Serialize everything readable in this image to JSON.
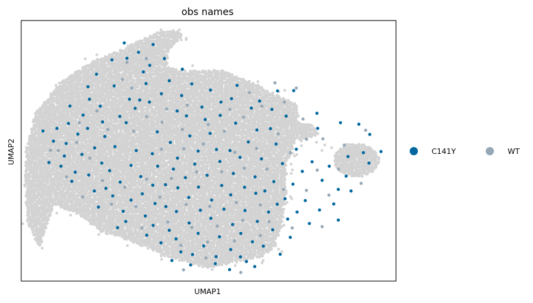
{
  "chart_data": {
    "type": "scatter",
    "title": "obs names",
    "xlabel": "UMAP1",
    "ylabel": "UMAP2",
    "xticks": [],
    "yticks": [],
    "grid": false,
    "legend_placement": "right",
    "xlim": [
      0,
      100
    ],
    "ylim": [
      0,
      100
    ],
    "background_color": "#d3d3d3",
    "series": [
      {
        "name": "C141Y",
        "color": "#00679f"
      },
      {
        "name": "WT",
        "color": "#94a8b8"
      }
    ],
    "highlight_points": {
      "C141Y": [
        [
          28.2,
          85.5
        ],
        [
          32.6,
          80.3
        ],
        [
          34.3,
          82.8
        ],
        [
          21.1,
          67.1
        ],
        [
          16.5,
          63.7
        ],
        [
          12.0,
          52.8
        ],
        [
          8.6,
          53.7
        ],
        [
          18.2,
          69.8
        ],
        [
          24.8,
          74.9
        ],
        [
          34.2,
          68.7
        ],
        [
          28.9,
          69.8
        ],
        [
          36.3,
          57.3
        ],
        [
          41.6,
          65.3
        ],
        [
          44.1,
          63.4
        ],
        [
          49.1,
          62.0
        ],
        [
          53.3,
          68.7
        ],
        [
          57.6,
          75.1
        ],
        [
          63.6,
          69.1
        ],
        [
          68.4,
          73.0
        ],
        [
          72.7,
          73.1
        ],
        [
          79.1,
          58.6
        ],
        [
          78.9,
          64.4
        ],
        [
          70.7,
          63.3
        ],
        [
          66.5,
          58.5
        ],
        [
          60.6,
          53.4
        ],
        [
          55.7,
          50.1
        ],
        [
          53.0,
          45.9
        ],
        [
          47.2,
          49.9
        ],
        [
          41.7,
          47.2
        ],
        [
          36.4,
          44.1
        ],
        [
          31.9,
          40.1
        ],
        [
          26.4,
          38.0
        ],
        [
          21.5,
          45.3
        ],
        [
          16.2,
          48.6
        ],
        [
          10.6,
          44.1
        ],
        [
          13.5,
          38.3
        ],
        [
          19.5,
          34.6
        ],
        [
          24.4,
          32.7
        ],
        [
          32.3,
          33.5
        ],
        [
          38.5,
          37.0
        ],
        [
          43.8,
          39.7
        ],
        [
          49.6,
          40.6
        ],
        [
          56.6,
          41.3
        ],
        [
          62.4,
          40.0
        ],
        [
          67.4,
          38.2
        ],
        [
          72.5,
          37.2
        ],
        [
          77.6,
          45.8
        ],
        [
          82.2,
          44.1
        ],
        [
          87.2,
          47.8
        ],
        [
          92.8,
          45.3
        ],
        [
          91.3,
          49.3
        ],
        [
          75.8,
          30.9
        ],
        [
          68.3,
          29.5
        ],
        [
          62.6,
          33.7
        ],
        [
          55.9,
          33.1
        ],
        [
          50.8,
          31.1
        ],
        [
          44.7,
          32.1
        ],
        [
          38.6,
          28.6
        ],
        [
          33.1,
          25.0
        ],
        [
          27.2,
          26.8
        ],
        [
          20.6,
          28.4
        ],
        [
          25.7,
          20.5
        ],
        [
          33.5,
          17.6
        ],
        [
          39.5,
          19.5
        ],
        [
          44.8,
          22.3
        ],
        [
          50.6,
          24.1
        ],
        [
          56.4,
          21.7
        ],
        [
          63.0,
          22.9
        ],
        [
          67.1,
          19.7
        ],
        [
          71.1,
          23.8
        ],
        [
          61.7,
          15.1
        ],
        [
          55.9,
          12.1
        ],
        [
          48.7,
          13.5
        ],
        [
          42.6,
          11.2
        ],
        [
          37.3,
          14.7
        ],
        [
          45.2,
          6.2
        ],
        [
          51.8,
          6.7
        ],
        [
          58.5,
          9.3
        ],
        [
          62.3,
          5.6
        ],
        [
          30.7,
          50.1
        ],
        [
          39.8,
          53.2
        ],
        [
          45.0,
          55.7
        ],
        [
          50.4,
          56.7
        ],
        [
          28.0,
          60.8
        ],
        [
          22.3,
          55.5
        ],
        [
          17.7,
          58.6
        ],
        [
          33.3,
          75.8
        ],
        [
          39.5,
          76.9
        ],
        [
          30.4,
          66.3
        ],
        [
          25.0,
          51.6
        ],
        [
          19.6,
          51.1
        ],
        [
          11.5,
          48.0
        ],
        [
          7.4,
          45.5
        ],
        [
          14.4,
          41.8
        ],
        [
          18.0,
          40.7
        ],
        [
          23.6,
          42.4
        ],
        [
          29.3,
          44.4
        ],
        [
          35.0,
          48.9
        ],
        [
          40.6,
          43.0
        ],
        [
          46.3,
          44.9
        ],
        [
          52.1,
          50.5
        ],
        [
          58.4,
          47.5
        ],
        [
          64.1,
          46.9
        ],
        [
          69.7,
          45.1
        ],
        [
          75.0,
          42.1
        ],
        [
          80.3,
          38.7
        ],
        [
          84.6,
          35.2
        ],
        [
          86.7,
          40.3
        ],
        [
          73.4,
          50.6
        ],
        [
          68.0,
          52.6
        ],
        [
          62.9,
          58.0
        ],
        [
          57.2,
          60.6
        ],
        [
          53.1,
          63.6
        ],
        [
          48.2,
          66.8
        ],
        [
          42.8,
          71.2
        ],
        [
          37.4,
          71.9
        ],
        [
          31.6,
          69.5
        ],
        [
          26.3,
          63.2
        ],
        [
          21.7,
          61.1
        ],
        [
          15.1,
          56.4
        ],
        [
          35.1,
          36.8
        ],
        [
          41.8,
          35.8
        ],
        [
          47.3,
          36.1
        ],
        [
          53.5,
          36.7
        ],
        [
          59.6,
          36.0
        ],
        [
          65.0,
          34.6
        ],
        [
          70.4,
          31.6
        ],
        [
          73.6,
          26.5
        ],
        [
          66.0,
          26.5
        ],
        [
          59.7,
          27.1
        ],
        [
          54.1,
          27.6
        ],
        [
          47.8,
          27.2
        ],
        [
          41.4,
          26.7
        ],
        [
          35.7,
          29.8
        ],
        [
          29.3,
          31.1
        ],
        [
          22.6,
          35.6
        ],
        [
          27.9,
          22.9
        ],
        [
          35.2,
          21.4
        ],
        [
          41.3,
          16.2
        ],
        [
          47.2,
          18.3
        ],
        [
          52.9,
          17.0
        ],
        [
          58.6,
          18.3
        ],
        [
          64.6,
          13.4
        ],
        [
          52.0,
          9.4
        ],
        [
          45.7,
          10.2
        ],
        [
          40.2,
          7.9
        ],
        [
          55.6,
          4.4
        ],
        [
          60.1,
          7.5
        ],
        [
          69.1,
          10.3
        ],
        [
          71.8,
          16.8
        ],
        [
          76.9,
          22.1
        ],
        [
          79.6,
          27.3
        ],
        [
          83.4,
          29.6
        ],
        [
          84.6,
          23.4
        ],
        [
          88.0,
          34.6
        ],
        [
          96.0,
          49.7
        ],
        [
          93.0,
          56.3
        ],
        [
          90.1,
          60.2
        ],
        [
          85.2,
          60.8
        ],
        [
          66.9,
          65.9
        ],
        [
          61.4,
          66.4
        ],
        [
          56.1,
          70.0
        ],
        [
          50.5,
          73.3
        ],
        [
          45.5,
          75.7
        ],
        [
          43.0,
          81.3
        ],
        [
          38.2,
          85.4
        ],
        [
          31.3,
          87.8
        ],
        [
          35.2,
          90.8
        ],
        [
          27.5,
          91.4
        ],
        [
          24.2,
          84.9
        ],
        [
          20.1,
          79.4
        ],
        [
          17.8,
          74.6
        ],
        [
          13.0,
          67.2
        ],
        [
          12.6,
          60.5
        ],
        [
          9.5,
          58.6
        ],
        [
          5.8,
          57.6
        ]
      ],
      "WT": [
        [
          27.0,
          77.4
        ],
        [
          29.5,
          74.1
        ],
        [
          20.2,
          65.3
        ],
        [
          15.5,
          60.8
        ],
        [
          9.9,
          50.1
        ],
        [
          23.1,
          58.2
        ],
        [
          30.0,
          57.5
        ],
        [
          37.6,
          61.0
        ],
        [
          43.0,
          58.2
        ],
        [
          48.6,
          52.6
        ],
        [
          54.2,
          57.5
        ],
        [
          59.3,
          62.9
        ],
        [
          64.2,
          67.1
        ],
        [
          70.2,
          68.7
        ],
        [
          75.2,
          62.2
        ],
        [
          80.5,
          54.6
        ],
        [
          76.1,
          54.5
        ],
        [
          71.8,
          49.3
        ],
        [
          65.6,
          43.0
        ],
        [
          59.5,
          43.3
        ],
        [
          53.5,
          42.0
        ],
        [
          46.8,
          41.9
        ],
        [
          40.1,
          39.4
        ],
        [
          33.5,
          39.1
        ],
        [
          27.6,
          36.0
        ],
        [
          21.7,
          38.6
        ],
        [
          16.4,
          32.3
        ],
        [
          24.1,
          29.5
        ],
        [
          30.6,
          28.6
        ],
        [
          37.0,
          32.2
        ],
        [
          44.0,
          29.4
        ],
        [
          50.3,
          28.7
        ],
        [
          57.4,
          30.1
        ],
        [
          63.8,
          29.2
        ],
        [
          70.0,
          35.2
        ],
        [
          76.1,
          34.8
        ],
        [
          82.1,
          33.0
        ],
        [
          80.3,
          20.9
        ],
        [
          72.3,
          20.4
        ],
        [
          66.1,
          22.8
        ],
        [
          59.1,
          23.3
        ],
        [
          52.3,
          21.1
        ],
        [
          45.5,
          20.6
        ],
        [
          39.1,
          22.7
        ],
        [
          32.2,
          20.4
        ],
        [
          42.6,
          13.7
        ],
        [
          49.7,
          15.0
        ],
        [
          56.9,
          15.4
        ],
        [
          63.8,
          17.5
        ],
        [
          49.3,
          8.9
        ],
        [
          43.3,
          4.3
        ],
        [
          58.6,
          3.3
        ],
        [
          86.2,
          52.2
        ],
        [
          91.9,
          57.9
        ],
        [
          73.4,
          74.1
        ],
        [
          67.7,
          76.1
        ],
        [
          60.9,
          72.3
        ],
        [
          55.7,
          65.9
        ],
        [
          49.9,
          60.1
        ],
        [
          44.3,
          67.5
        ],
        [
          38.8,
          66.1
        ],
        [
          33.5,
          63.1
        ],
        [
          28.2,
          83.9
        ],
        [
          33.4,
          85.4
        ],
        [
          18.3,
          47.2
        ],
        [
          12.1,
          40.0
        ],
        [
          7.8,
          50.2
        ],
        [
          14.8,
          53.2
        ],
        [
          37.4,
          50.6
        ],
        [
          43.4,
          50.8
        ],
        [
          57.0,
          49.4
        ],
        [
          62.8,
          50.9
        ],
        [
          68.6,
          56.5
        ],
        [
          84.7,
          43.0
        ],
        [
          90.7,
          37.5
        ],
        [
          79.0,
          42.6
        ]
      ]
    }
  }
}
